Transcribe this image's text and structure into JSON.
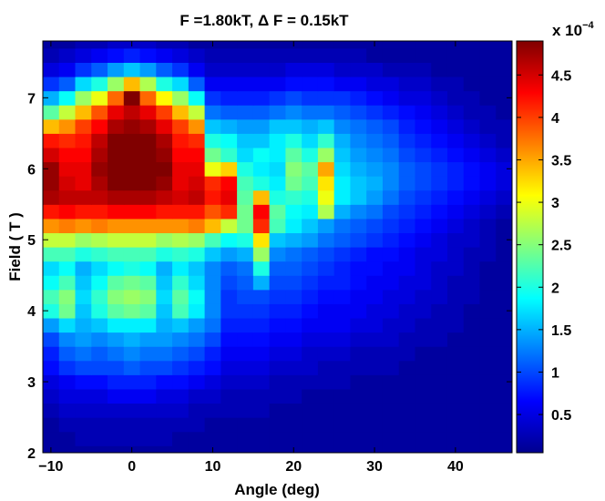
{
  "chart_data": {
    "type": "heatmap",
    "title": "F =1.80kT, Δ F = 0.15kT",
    "xlabel": "Angle (deg)",
    "ylabel": "Field ( T )",
    "xlim": [
      -11,
      47
    ],
    "ylim": [
      2,
      7.8
    ],
    "x_ticks": [
      -10,
      0,
      10,
      20,
      30,
      40
    ],
    "x_tick_labels": [
      "−10",
      "0",
      "10",
      "20",
      "30",
      "40"
    ],
    "y_ticks": [
      2,
      3,
      4,
      5,
      6,
      7
    ],
    "y_tick_labels": [
      "2",
      "3",
      "4",
      "5",
      "6",
      "7"
    ],
    "colorbar": {
      "colormap": "jet",
      "range": [
        0.05,
        4.9
      ],
      "ticks": [
        0.5,
        1,
        1.5,
        2,
        2.5,
        3,
        3.5,
        4,
        4.5
      ],
      "tick_labels": [
        "0.5",
        "1",
        "1.5",
        "2",
        "2.5",
        "3",
        "3.5",
        "4",
        "4.5"
      ],
      "exponent_label": "x 10",
      "exponent_power": "−4"
    },
    "angles": [
      -10,
      -8,
      -6,
      -4,
      -2,
      0,
      2,
      4,
      6,
      8,
      10,
      12,
      14,
      16,
      18,
      20,
      22,
      24,
      26,
      28,
      30,
      32,
      34,
      36,
      38,
      40,
      42,
      44,
      46
    ],
    "fields": [
      2.0,
      2.2,
      2.4,
      2.6,
      2.8,
      3.0,
      3.2,
      3.4,
      3.6,
      3.8,
      4.0,
      4.2,
      4.4,
      4.6,
      4.8,
      5.0,
      5.2,
      5.4,
      5.6,
      5.8,
      6.0,
      6.2,
      6.4,
      6.6,
      6.8,
      7.0,
      7.2,
      7.4,
      7.6,
      7.8
    ],
    "values": [
      [
        0.2,
        0.2,
        0.2,
        0.2,
        0.2,
        0.2,
        0.2,
        0.2,
        0.2,
        0.2,
        0.2,
        0.2,
        0.2,
        0.2,
        0.2,
        0.2,
        0.2,
        0.2,
        0.2,
        0.2,
        0.2,
        0.2,
        0.2,
        0.2,
        0.2,
        0.2,
        0.2,
        0.2,
        0.2
      ],
      [
        0.2,
        0.2,
        0.3,
        0.3,
        0.3,
        0.3,
        0.3,
        0.3,
        0.2,
        0.2,
        0.2,
        0.2,
        0.2,
        0.2,
        0.2,
        0.2,
        0.2,
        0.2,
        0.2,
        0.2,
        0.2,
        0.2,
        0.2,
        0.2,
        0.2,
        0.2,
        0.2,
        0.2,
        0.2
      ],
      [
        0.2,
        0.3,
        0.3,
        0.3,
        0.3,
        0.3,
        0.3,
        0.3,
        0.3,
        0.3,
        0.2,
        0.2,
        0.2,
        0.2,
        0.2,
        0.2,
        0.2,
        0.2,
        0.2,
        0.2,
        0.2,
        0.2,
        0.2,
        0.2,
        0.2,
        0.2,
        0.2,
        0.2,
        0.2
      ],
      [
        0.3,
        0.4,
        0.4,
        0.4,
        0.4,
        0.4,
        0.4,
        0.4,
        0.4,
        0.3,
        0.3,
        0.3,
        0.3,
        0.3,
        0.2,
        0.2,
        0.2,
        0.2,
        0.2,
        0.2,
        0.2,
        0.2,
        0.2,
        0.2,
        0.2,
        0.2,
        0.2,
        0.2,
        0.2
      ],
      [
        0.4,
        0.5,
        0.5,
        0.5,
        0.6,
        0.6,
        0.6,
        0.5,
        0.5,
        0.4,
        0.4,
        0.3,
        0.3,
        0.3,
        0.3,
        0.3,
        0.2,
        0.2,
        0.2,
        0.2,
        0.2,
        0.2,
        0.2,
        0.2,
        0.2,
        0.2,
        0.2,
        0.2,
        0.2
      ],
      [
        0.5,
        0.6,
        0.7,
        0.7,
        0.8,
        0.8,
        0.8,
        0.7,
        0.7,
        0.6,
        0.5,
        0.4,
        0.4,
        0.4,
        0.3,
        0.3,
        0.3,
        0.3,
        0.3,
        0.2,
        0.2,
        0.2,
        0.2,
        0.2,
        0.2,
        0.2,
        0.2,
        0.2,
        0.2
      ],
      [
        0.7,
        0.9,
        1.0,
        1.0,
        1.0,
        1.1,
        1.0,
        1.0,
        0.9,
        0.8,
        0.7,
        0.5,
        0.5,
        0.5,
        0.4,
        0.4,
        0.4,
        0.3,
        0.3,
        0.3,
        0.3,
        0.3,
        0.2,
        0.2,
        0.2,
        0.2,
        0.2,
        0.2,
        0.2
      ],
      [
        0.8,
        1.1,
        1.2,
        1.1,
        1.2,
        1.3,
        1.2,
        1.2,
        1.1,
        1.0,
        0.8,
        0.6,
        0.6,
        0.6,
        0.5,
        0.5,
        0.4,
        0.4,
        0.4,
        0.3,
        0.3,
        0.3,
        0.3,
        0.2,
        0.2,
        0.2,
        0.2,
        0.2,
        0.2
      ],
      [
        1.0,
        1.3,
        1.4,
        1.3,
        1.4,
        1.5,
        1.4,
        1.4,
        1.3,
        1.2,
        1.0,
        0.7,
        0.7,
        0.7,
        0.6,
        0.6,
        0.5,
        0.5,
        0.5,
        0.4,
        0.4,
        0.4,
        0.3,
        0.3,
        0.3,
        0.2,
        0.2,
        0.2,
        0.2
      ],
      [
        1.4,
        1.7,
        1.5,
        1.6,
        1.8,
        1.8,
        1.8,
        1.5,
        1.6,
        1.4,
        1.2,
        0.8,
        0.8,
        0.8,
        0.7,
        0.7,
        0.6,
        0.6,
        0.6,
        0.5,
        0.5,
        0.4,
        0.4,
        0.3,
        0.3,
        0.3,
        0.2,
        0.2,
        0.2
      ],
      [
        2.0,
        2.4,
        1.6,
        2.0,
        2.3,
        2.4,
        2.3,
        1.6,
        2.2,
        1.8,
        1.3,
        0.9,
        0.9,
        0.9,
        0.8,
        0.8,
        0.7,
        0.6,
        0.6,
        0.6,
        0.5,
        0.5,
        0.4,
        0.4,
        0.3,
        0.3,
        0.2,
        0.2,
        0.2
      ],
      [
        2.2,
        2.5,
        1.7,
        2.1,
        2.5,
        2.6,
        2.5,
        1.7,
        2.3,
        1.9,
        1.3,
        0.9,
        1.0,
        1.0,
        0.9,
        0.9,
        0.8,
        0.7,
        0.7,
        0.6,
        0.6,
        0.5,
        0.5,
        0.4,
        0.4,
        0.3,
        0.3,
        0.2,
        0.2
      ],
      [
        1.9,
        2.2,
        1.6,
        1.9,
        2.3,
        2.4,
        2.3,
        1.6,
        2.1,
        1.7,
        1.3,
        1.0,
        1.1,
        1.5,
        1.0,
        1.0,
        0.9,
        0.8,
        0.8,
        0.7,
        0.6,
        0.6,
        0.5,
        0.5,
        0.4,
        0.3,
        0.3,
        0.2,
        0.2
      ],
      [
        1.7,
        1.9,
        1.5,
        1.7,
        1.9,
        2.0,
        1.9,
        1.5,
        1.8,
        1.6,
        1.3,
        1.1,
        1.2,
        2.0,
        1.1,
        1.1,
        1.0,
        0.9,
        0.8,
        0.7,
        0.7,
        0.6,
        0.6,
        0.5,
        0.4,
        0.4,
        0.3,
        0.2,
        0.2
      ],
      [
        2.2,
        2.2,
        2.0,
        2.1,
        2.2,
        2.2,
        2.2,
        2.0,
        2.1,
        2.0,
        1.6,
        1.4,
        1.5,
        2.6,
        1.3,
        1.2,
        1.1,
        1.0,
        0.9,
        0.8,
        0.7,
        0.7,
        0.6,
        0.5,
        0.5,
        0.4,
        0.3,
        0.3,
        0.2
      ],
      [
        2.8,
        2.8,
        2.6,
        2.7,
        2.8,
        2.8,
        2.8,
        2.6,
        2.7,
        2.6,
        2.2,
        1.9,
        2.0,
        3.2,
        1.6,
        1.5,
        1.4,
        1.2,
        1.1,
        1.0,
        0.9,
        0.8,
        0.7,
        0.6,
        0.5,
        0.4,
        0.4,
        0.3,
        0.2
      ],
      [
        3.6,
        3.7,
        3.6,
        3.7,
        3.6,
        3.6,
        3.6,
        3.6,
        3.6,
        3.7,
        3.4,
        2.8,
        2.4,
        4.1,
        2.2,
        1.8,
        1.6,
        1.4,
        1.2,
        1.1,
        1.0,
        0.9,
        0.8,
        0.7,
        0.6,
        0.5,
        0.4,
        0.3,
        0.2
      ],
      [
        4.2,
        4.3,
        4.2,
        4.2,
        4.3,
        4.3,
        4.3,
        4.2,
        4.2,
        4.2,
        3.9,
        4.1,
        2.4,
        4.3,
        2.3,
        1.9,
        1.8,
        2.7,
        1.5,
        1.3,
        1.2,
        1.0,
        0.9,
        0.8,
        0.7,
        0.6,
        0.5,
        0.4,
        0.3
      ],
      [
        4.7,
        4.6,
        4.6,
        4.6,
        4.7,
        4.7,
        4.7,
        4.6,
        4.5,
        4.6,
        4.2,
        4.4,
        2.3,
        3.4,
        2.0,
        2.1,
        2.0,
        3.0,
        1.8,
        1.6,
        1.4,
        1.2,
        1.0,
        0.9,
        0.8,
        0.7,
        0.6,
        0.5,
        0.4
      ],
      [
        4.8,
        4.5,
        4.4,
        4.7,
        5.0,
        5.0,
        5.0,
        4.8,
        4.4,
        4.5,
        4.1,
        4.3,
        2.2,
        2.0,
        1.8,
        2.4,
        2.2,
        3.2,
        1.8,
        1.6,
        1.5,
        1.3,
        1.1,
        1.0,
        0.9,
        0.8,
        0.7,
        0.6,
        0.5
      ],
      [
        4.8,
        4.4,
        4.4,
        4.8,
        5.0,
        5.0,
        5.0,
        4.9,
        4.4,
        4.4,
        3.0,
        3.3,
        2.0,
        1.8,
        1.7,
        2.5,
        2.3,
        3.5,
        1.7,
        1.5,
        1.4,
        1.3,
        1.1,
        1.0,
        0.9,
        0.8,
        0.7,
        0.6,
        0.5
      ],
      [
        4.5,
        4.3,
        4.3,
        4.7,
        5.0,
        5.0,
        5.0,
        4.8,
        4.3,
        4.3,
        2.4,
        2.1,
        1.7,
        1.9,
        1.8,
        2.3,
        2.0,
        2.6,
        1.6,
        1.4,
        1.3,
        1.2,
        1.0,
        0.9,
        0.8,
        0.7,
        0.6,
        0.5,
        0.4
      ],
      [
        4.2,
        4.1,
        4.2,
        4.6,
        5.0,
        5.0,
        5.0,
        4.7,
        4.2,
        4.1,
        2.0,
        1.9,
        1.6,
        1.6,
        1.8,
        2.0,
        1.7,
        2.1,
        1.5,
        1.3,
        1.2,
        1.1,
        0.9,
        0.8,
        0.7,
        0.6,
        0.5,
        0.4,
        0.3
      ],
      [
        3.4,
        3.6,
        4.0,
        4.3,
        4.7,
        4.8,
        4.7,
        4.4,
        4.0,
        3.6,
        1.6,
        1.5,
        1.4,
        1.4,
        1.6,
        1.6,
        1.5,
        1.6,
        1.3,
        1.2,
        1.1,
        1.0,
        0.8,
        0.7,
        0.6,
        0.5,
        0.4,
        0.3,
        0.3
      ],
      [
        2.3,
        2.8,
        3.4,
        3.9,
        4.4,
        4.6,
        4.4,
        4.0,
        3.4,
        2.8,
        1.2,
        1.1,
        1.1,
        1.1,
        1.2,
        1.3,
        1.2,
        1.2,
        1.1,
        1.0,
        0.9,
        0.8,
        0.7,
        0.6,
        0.5,
        0.4,
        0.3,
        0.3,
        0.2
      ],
      [
        1.5,
        1.9,
        2.6,
        3.0,
        3.8,
        4.9,
        3.8,
        3.1,
        2.6,
        1.9,
        0.9,
        0.8,
        0.8,
        0.8,
        0.9,
        1.0,
        0.9,
        0.9,
        0.9,
        0.8,
        0.7,
        0.6,
        0.5,
        0.5,
        0.4,
        0.3,
        0.3,
        0.2,
        0.2
      ],
      [
        0.9,
        1.1,
        1.7,
        2.0,
        2.6,
        3.4,
        2.7,
        2.0,
        1.7,
        1.1,
        0.6,
        0.6,
        0.6,
        0.6,
        0.6,
        0.7,
        0.7,
        0.7,
        0.6,
        0.6,
        0.5,
        0.5,
        0.4,
        0.4,
        0.3,
        0.3,
        0.2,
        0.2,
        0.2
      ],
      [
        0.5,
        0.6,
        0.9,
        1.1,
        1.4,
        1.6,
        1.4,
        1.1,
        0.9,
        0.6,
        0.4,
        0.4,
        0.4,
        0.4,
        0.4,
        0.5,
        0.5,
        0.5,
        0.4,
        0.4,
        0.4,
        0.3,
        0.3,
        0.3,
        0.2,
        0.2,
        0.2,
        0.2,
        0.2
      ],
      [
        0.3,
        0.4,
        0.5,
        0.6,
        0.7,
        0.8,
        0.7,
        0.6,
        0.5,
        0.4,
        0.3,
        0.3,
        0.3,
        0.3,
        0.3,
        0.3,
        0.3,
        0.3,
        0.3,
        0.3,
        0.2,
        0.2,
        0.2,
        0.2,
        0.2,
        0.2,
        0.2,
        0.2,
        0.2
      ],
      [
        0.2,
        0.2,
        0.3,
        0.3,
        0.4,
        0.4,
        0.4,
        0.3,
        0.3,
        0.2,
        0.2,
        0.2,
        0.2,
        0.2,
        0.2,
        0.2,
        0.2,
        0.2,
        0.2,
        0.2,
        0.2,
        0.2,
        0.2,
        0.2,
        0.2,
        0.2,
        0.2,
        0.2,
        0.2
      ]
    ]
  }
}
